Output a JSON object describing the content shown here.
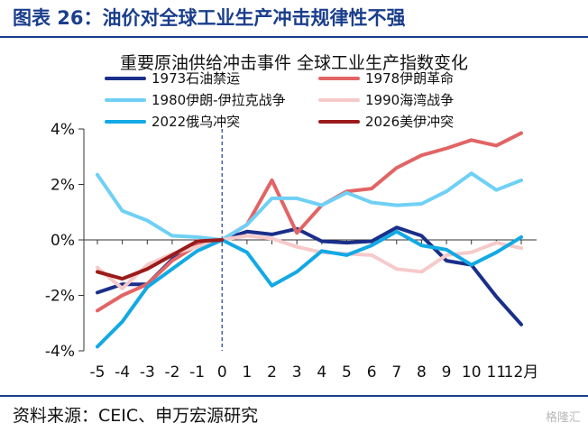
{
  "figure": {
    "title": "图表 26：油价对全球工业生产冲击规律性不强",
    "source": "资料来源：CEIC、申万宏源研究",
    "watermark": "格隆汇"
  },
  "chart_data": {
    "type": "line",
    "title": "重要原油供给冲击事件 全球工业生产指数变化",
    "x": [
      -5,
      -4,
      -3,
      -2,
      -1,
      0,
      1,
      2,
      3,
      4,
      5,
      6,
      7,
      8,
      9,
      10,
      11,
      12
    ],
    "x_tick_labels": [
      "-5",
      "-4",
      "-3",
      "-2",
      "-1",
      "0",
      "1",
      "2",
      "3",
      "4",
      "5",
      "6",
      "7",
      "8",
      "9",
      "10",
      "11",
      "12月"
    ],
    "ylim": [
      -4,
      4
    ],
    "y_ticks": [
      -4,
      -2,
      0,
      2,
      4
    ],
    "y_tick_labels": [
      "-4%",
      "-2%",
      "0%",
      "2%",
      "4%"
    ],
    "xlabel": "",
    "ylabel": "",
    "grid": false,
    "reference_line_at_x": 0,
    "legend_position": "top",
    "series": [
      {
        "name": "1973石油禁运",
        "color": "#1a2f8a",
        "values": [
          -1.9,
          -1.6,
          -1.6,
          -0.7,
          -0.2,
          0,
          0.3,
          0.2,
          0.4,
          -0.05,
          -0.1,
          -0.05,
          0.45,
          0.15,
          -0.75,
          -0.9,
          -2.05,
          -3.05
        ]
      },
      {
        "name": "1978伊朗革命",
        "color": "#e26464",
        "values": [
          -2.55,
          -2.0,
          -1.6,
          -0.75,
          -0.2,
          0,
          0.55,
          2.15,
          0.25,
          1.25,
          1.75,
          1.85,
          2.6,
          3.05,
          3.3,
          3.6,
          3.4,
          3.85
        ]
      },
      {
        "name": "1980伊朗-伊拉克战争",
        "color": "#6fd0f5",
        "values": [
          2.35,
          1.05,
          0.7,
          0.15,
          0.1,
          0,
          0.55,
          1.5,
          1.5,
          1.25,
          1.7,
          1.35,
          1.25,
          1.3,
          1.75,
          2.4,
          1.8,
          2.15
        ]
      },
      {
        "name": "1990海湾战争",
        "color": "#f6caca",
        "values": [
          -1.0,
          -1.75,
          -0.9,
          -0.5,
          -0.25,
          0,
          0.15,
          0.05,
          -0.25,
          -0.45,
          -0.5,
          -0.55,
          -1.05,
          -1.15,
          -0.55,
          -0.45,
          -0.1,
          -0.3
        ]
      },
      {
        "name": "2022俄乌冲突",
        "color": "#12a9e4",
        "values": [
          -3.85,
          -2.95,
          -1.7,
          -1.05,
          -0.4,
          0,
          -0.45,
          -1.65,
          -1.15,
          -0.4,
          -0.55,
          -0.2,
          0.3,
          -0.2,
          -0.35,
          -0.9,
          -0.45,
          0.1
        ]
      },
      {
        "name": "2026美伊冲突",
        "color": "#9b1b1b",
        "values": [
          -1.15,
          -1.4,
          -1.05,
          -0.55,
          -0.05,
          0,
          null,
          null,
          null,
          null,
          null,
          null,
          null,
          null,
          null,
          null,
          null,
          null
        ]
      }
    ]
  }
}
